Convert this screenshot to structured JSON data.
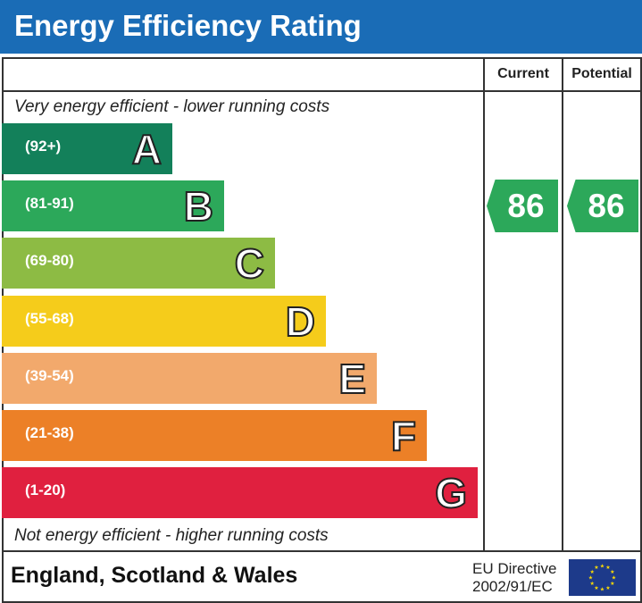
{
  "header": {
    "title": "Energy Efficiency Rating"
  },
  "columns": {
    "current": "Current",
    "potential": "Potential"
  },
  "notes": {
    "top": "Very energy efficient - lower running costs",
    "bottom": "Not energy efficient - higher running costs"
  },
  "footer": {
    "country": "England, Scotland & Wales",
    "directive_line1": "EU Directive",
    "directive_line2": "2002/91/EC"
  },
  "chart_data": {
    "type": "bar",
    "title": "Energy Efficiency Rating",
    "bands": [
      {
        "letter": "A",
        "range": "(92+)",
        "color": "#13805a"
      },
      {
        "letter": "B",
        "range": "(81-91)",
        "color": "#2ca85a"
      },
      {
        "letter": "C",
        "range": "(69-80)",
        "color": "#8dbb44"
      },
      {
        "letter": "D",
        "range": "(55-68)",
        "color": "#f5cc1b"
      },
      {
        "letter": "E",
        "range": "(39-54)",
        "color": "#f2a96c"
      },
      {
        "letter": "F",
        "range": "(21-38)",
        "color": "#ec8027"
      },
      {
        "letter": "G",
        "range": "(1-20)",
        "color": "#e0203f"
      }
    ],
    "current": {
      "value": 86,
      "band": "B"
    },
    "potential": {
      "value": 86,
      "band": "B"
    }
  }
}
